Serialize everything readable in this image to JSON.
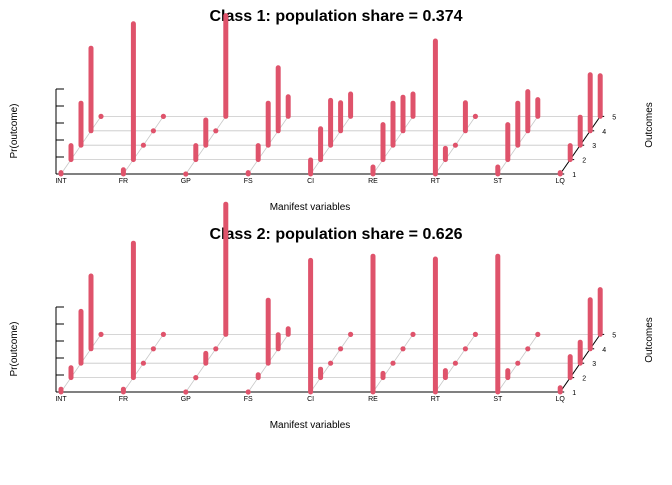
{
  "chart_data": [
    {
      "type": "bar",
      "title": "Class 1: population share = 0.374",
      "xlabel": "Manifest variables",
      "ylabel": "Pr(outcome)",
      "zlabel": "Outcomes",
      "categories": [
        "INT",
        "FR",
        "GP",
        "FS",
        "CI",
        "RE",
        "RT",
        "ST",
        "LQ"
      ],
      "outcomes": [
        "1",
        "2",
        "3",
        "4",
        "5"
      ],
      "ylim": [
        0,
        1
      ],
      "color": "#DF536B",
      "values": [
        [
          0.01,
          0.1,
          0.3,
          0.59,
          0.0
        ],
        [
          0.03,
          0.97,
          0.0,
          0.0,
          0.0
        ],
        [
          0.0,
          0.1,
          0.18,
          0.0,
          0.72
        ],
        [
          0.01,
          0.1,
          0.3,
          0.45,
          0.14
        ],
        [
          0.1,
          0.22,
          0.32,
          0.2,
          0.16
        ],
        [
          0.05,
          0.25,
          0.3,
          0.24,
          0.16
        ],
        [
          0.95,
          0.08,
          0.0,
          0.2,
          0.0
        ],
        [
          0.05,
          0.25,
          0.3,
          0.28,
          0.12
        ],
        [
          0.01,
          0.1,
          0.2,
          0.4,
          0.29
        ]
      ]
    },
    {
      "type": "bar",
      "title": "Class 2: population share = 0.626",
      "xlabel": "Manifest variables",
      "ylabel": "Pr(outcome)",
      "zlabel": "Outcomes",
      "categories": [
        "INT",
        "FR",
        "GP",
        "FS",
        "CI",
        "RE",
        "RT",
        "ST",
        "LQ"
      ],
      "outcomes": [
        "1",
        "2",
        "3",
        "4",
        "5"
      ],
      "ylim": [
        0,
        1
      ],
      "color": "#DF536B",
      "values": [
        [
          0.02,
          0.07,
          0.37,
          0.52,
          0.0
        ],
        [
          0.02,
          0.96,
          0.0,
          0.0,
          0.0
        ],
        [
          0.0,
          0.0,
          0.07,
          0.0,
          0.93
        ],
        [
          0.0,
          0.02,
          0.45,
          0.1,
          0.04
        ],
        [
          0.94,
          0.06,
          0.0,
          0.0,
          0.0
        ],
        [
          0.97,
          0.03,
          0.0,
          0.0,
          0.0
        ],
        [
          0.95,
          0.05,
          0.0,
          0.0,
          0.0
        ],
        [
          0.97,
          0.05,
          0.0,
          0.0,
          0.0
        ],
        [
          0.03,
          0.15,
          0.15,
          0.35,
          0.32
        ]
      ]
    }
  ]
}
